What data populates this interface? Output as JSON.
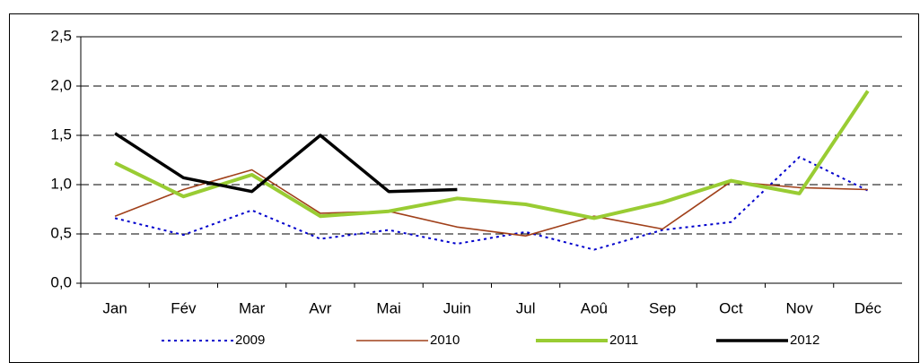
{
  "chart_data": {
    "type": "line",
    "categories": [
      "Jan",
      "Fév",
      "Mar",
      "Avr",
      "Mai",
      "Juin",
      "Jul",
      "Aoû",
      "Sep",
      "Oct",
      "Nov",
      "Déc"
    ],
    "series": [
      {
        "name": "2009",
        "color": "#0000cc",
        "dashed": true,
        "values": [
          0.66,
          0.49,
          0.74,
          0.45,
          0.54,
          0.4,
          0.52,
          0.34,
          0.54,
          0.62,
          1.28,
          0.94
        ]
      },
      {
        "name": "2010",
        "color": "#a0401a",
        "values": [
          0.68,
          0.95,
          1.15,
          0.71,
          0.73,
          0.57,
          0.48,
          0.68,
          0.55,
          1.03,
          0.97,
          0.95
        ]
      },
      {
        "name": "2011",
        "color": "#99cc33",
        "values": [
          1.22,
          0.88,
          1.1,
          0.68,
          0.73,
          0.86,
          0.8,
          0.66,
          0.82,
          1.04,
          0.91,
          1.95
        ]
      },
      {
        "name": "2012",
        "color": "#000000",
        "values": [
          1.52,
          1.07,
          0.93,
          1.5,
          0.93,
          0.95,
          null,
          null,
          null,
          null,
          null,
          null
        ]
      }
    ],
    "ylim": [
      0,
      2.5
    ],
    "yticks": [
      {
        "value": 0,
        "label": "0,0"
      },
      {
        "value": 0.5,
        "label": "0,5"
      },
      {
        "value": 1,
        "label": "1,0"
      },
      {
        "value": 1.5,
        "label": "1,5"
      },
      {
        "value": 2,
        "label": "2,0"
      },
      {
        "value": 2.5,
        "label": "2,5"
      }
    ],
    "grid": true,
    "legend": "bottom"
  }
}
